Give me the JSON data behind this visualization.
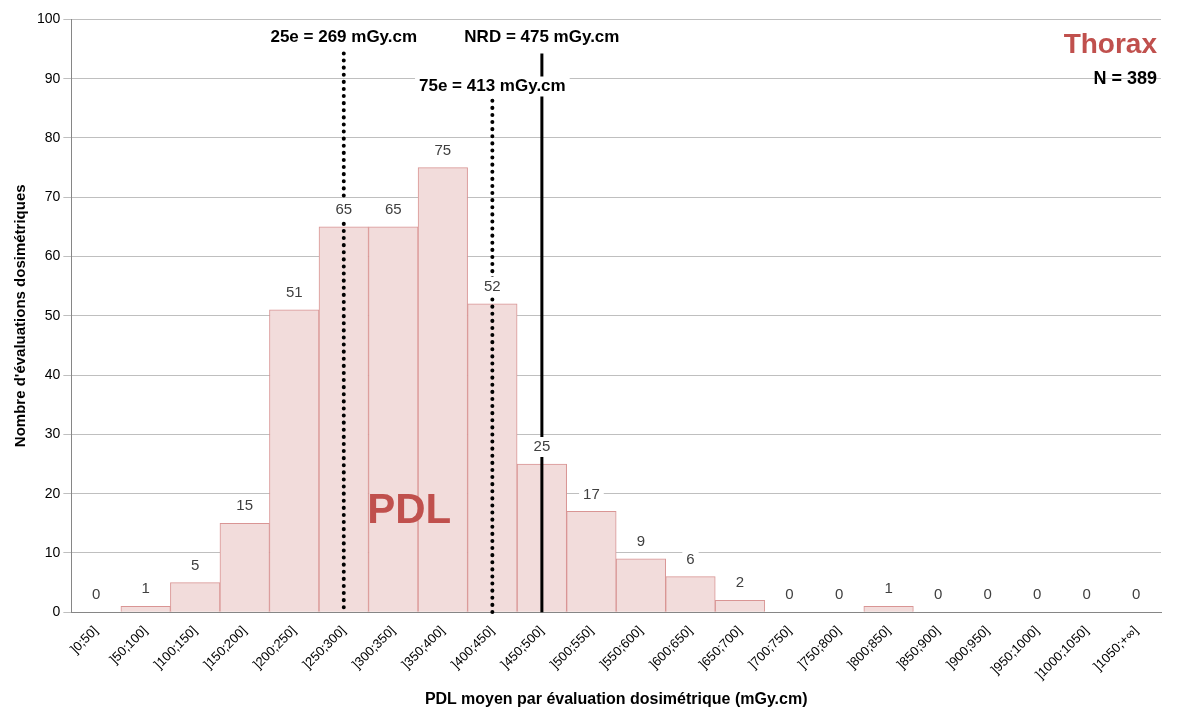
{
  "chart_data": {
    "type": "bar",
    "xlabel": "PDL moyen par évaluation dosimétrique (mGy.cm)",
    "ylabel": "Nombre d'évaluations dosimétriques",
    "categories": [
      "]0;50]",
      "]50;100]",
      "]100;150]",
      "]150;200]",
      "]200;250]",
      "]250;300]",
      "]300;350]",
      "]350;400]",
      "]400;450]",
      "]450;500]",
      "]500;550]",
      "]550;600]",
      "]600;650]",
      "]650;700]",
      "]700;750]",
      "]750;800]",
      "]800;850]",
      "]850;900]",
      "]900;950]",
      "]950;1000]",
      "]1000;1050]",
      "]1050;+∞]"
    ],
    "values": [
      0,
      1,
      5,
      15,
      51,
      65,
      65,
      75,
      52,
      25,
      17,
      9,
      6,
      2,
      0,
      0,
      1,
      0,
      0,
      0,
      0,
      0
    ],
    "color": "#f2dcdb",
    "ylim": [
      0,
      100
    ],
    "yticks": [
      0,
      10,
      20,
      30,
      40,
      50,
      60,
      70,
      80,
      90,
      100
    ],
    "grid": "y",
    "legend": false,
    "data_labels": true,
    "ref_lines": [
      {
        "axis": "x",
        "value": "]250;300]",
        "label": "25e = 269 mGy.cm",
        "line_style": "dotted"
      },
      {
        "axis": "x",
        "value": "]400;450]",
        "label": "75e = 413 mGy.cm",
        "line_style": "dotted"
      },
      {
        "axis": "x",
        "value": "]450;500]",
        "label": "NRD = 475 mGy.cm",
        "line_style": "solid"
      }
    ],
    "annotations": [
      "PDL",
      "Thorax",
      "N = 389"
    ]
  }
}
